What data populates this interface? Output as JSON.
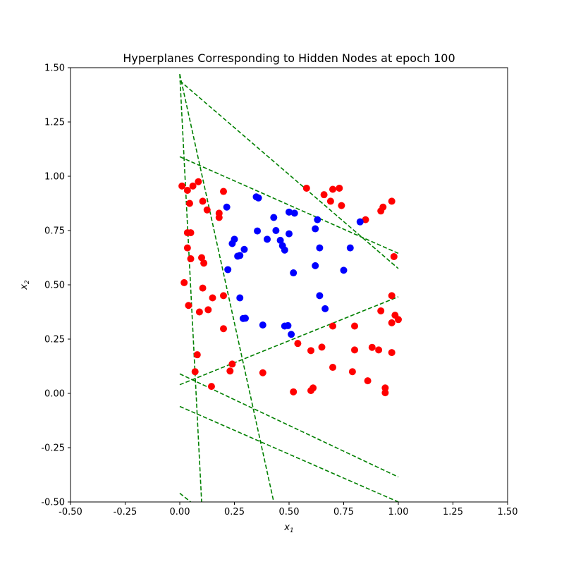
{
  "chart_data": {
    "type": "scatter",
    "title": "Hyperplanes Corresponding to Hidden Nodes at epoch 100",
    "xlabel": "x",
    "xlabel_sub": "1",
    "ylabel": "x",
    "ylabel_sub": "2",
    "xlim": [
      -0.5,
      1.5
    ],
    "ylim": [
      -0.5,
      1.5
    ],
    "xticks": [
      "-0.50",
      "-0.25",
      "0.00",
      "0.25",
      "0.50",
      "0.75",
      "1.00",
      "1.25",
      "1.50"
    ],
    "yticks": [
      "-0.50",
      "-0.25",
      "0.00",
      "0.25",
      "0.50",
      "0.75",
      "1.00",
      "1.25",
      "1.50"
    ],
    "grid": false,
    "colors": {
      "red": "#ff0000",
      "blue": "#0000ff",
      "hyperplane": "#008000"
    },
    "series": [
      {
        "color": "red",
        "points": [
          [
            0.01,
            0.955
          ],
          [
            0.035,
            0.935
          ],
          [
            0.045,
            0.875
          ],
          [
            0.06,
            0.955
          ],
          [
            0.085,
            0.975
          ],
          [
            0.105,
            0.885
          ],
          [
            0.125,
            0.845
          ],
          [
            0.2,
            0.93
          ],
          [
            0.18,
            0.83
          ],
          [
            0.18,
            0.81
          ],
          [
            0.035,
            0.74
          ],
          [
            0.05,
            0.74
          ],
          [
            0.035,
            0.67
          ],
          [
            0.05,
            0.62
          ],
          [
            0.1,
            0.625
          ],
          [
            0.11,
            0.6
          ],
          [
            0.02,
            0.51
          ],
          [
            0.105,
            0.485
          ],
          [
            0.04,
            0.405
          ],
          [
            0.09,
            0.375
          ],
          [
            0.13,
            0.385
          ],
          [
            0.15,
            0.44
          ],
          [
            0.2,
            0.45
          ],
          [
            0.2,
            0.298
          ],
          [
            0.08,
            0.178
          ],
          [
            0.07,
            0.1
          ],
          [
            0.145,
            0.032
          ],
          [
            0.24,
            0.135
          ],
          [
            0.23,
            0.103
          ],
          [
            0.38,
            0.095
          ],
          [
            0.54,
            0.23
          ],
          [
            0.52,
            0.007
          ],
          [
            0.6,
            0.013
          ],
          [
            0.61,
            0.025
          ],
          [
            0.6,
            0.197
          ],
          [
            0.65,
            0.213
          ],
          [
            0.7,
            0.12
          ],
          [
            0.7,
            0.31
          ],
          [
            0.58,
            0.945
          ],
          [
            0.66,
            0.915
          ],
          [
            0.7,
            0.94
          ],
          [
            0.73,
            0.945
          ],
          [
            0.74,
            0.865
          ],
          [
            0.69,
            0.885
          ],
          [
            0.85,
            0.8
          ],
          [
            0.92,
            0.84
          ],
          [
            0.93,
            0.858
          ],
          [
            0.97,
            0.885
          ],
          [
            0.98,
            0.63
          ],
          [
            0.79,
            0.1
          ],
          [
            0.8,
            0.2
          ],
          [
            0.8,
            0.31
          ],
          [
            0.86,
            0.058
          ],
          [
            0.88,
            0.212
          ],
          [
            0.91,
            0.2
          ],
          [
            0.92,
            0.38
          ],
          [
            0.94,
            0.003
          ],
          [
            0.94,
            0.025
          ],
          [
            0.97,
            0.188
          ],
          [
            0.97,
            0.325
          ],
          [
            0.97,
            0.45
          ],
          [
            0.985,
            0.36
          ],
          [
            1.0,
            0.34
          ]
        ]
      },
      {
        "color": "blue",
        "points": [
          [
            0.215,
            0.858
          ],
          [
            0.24,
            0.69
          ],
          [
            0.25,
            0.71
          ],
          [
            0.265,
            0.632
          ],
          [
            0.275,
            0.635
          ],
          [
            0.295,
            0.663
          ],
          [
            0.22,
            0.57
          ],
          [
            0.275,
            0.44
          ],
          [
            0.29,
            0.345
          ],
          [
            0.3,
            0.346
          ],
          [
            0.35,
            0.905
          ],
          [
            0.36,
            0.9
          ],
          [
            0.355,
            0.748
          ],
          [
            0.4,
            0.71
          ],
          [
            0.43,
            0.81
          ],
          [
            0.44,
            0.75
          ],
          [
            0.46,
            0.705
          ],
          [
            0.47,
            0.68
          ],
          [
            0.48,
            0.66
          ],
          [
            0.38,
            0.315
          ],
          [
            0.48,
            0.31
          ],
          [
            0.495,
            0.312
          ],
          [
            0.51,
            0.272
          ],
          [
            0.5,
            0.835
          ],
          [
            0.525,
            0.83
          ],
          [
            0.5,
            0.735
          ],
          [
            0.52,
            0.555
          ],
          [
            0.62,
            0.758
          ],
          [
            0.63,
            0.8
          ],
          [
            0.64,
            0.67
          ],
          [
            0.62,
            0.588
          ],
          [
            0.64,
            0.45
          ],
          [
            0.665,
            0.39
          ],
          [
            0.75,
            0.567
          ],
          [
            0.78,
            0.67
          ],
          [
            0.825,
            0.79
          ]
        ]
      }
    ],
    "hyperplanes": [
      {
        "from": [
          0.0,
          1.44
        ],
        "to": [
          1.0,
          0.575
        ]
      },
      {
        "from": [
          0.0,
          1.09
        ],
        "to": [
          1.0,
          0.645
        ]
      },
      {
        "from": [
          0.0,
          0.04
        ],
        "to": [
          1.0,
          0.445
        ]
      },
      {
        "from": [
          0.0,
          0.09
        ],
        "to": [
          1.0,
          -0.385
        ]
      },
      {
        "from": [
          0.0,
          -0.06
        ],
        "to": [
          1.0,
          -0.5
        ]
      },
      {
        "from": [
          0.0,
          1.47
        ],
        "to": [
          0.1,
          -0.5
        ]
      },
      {
        "from": [
          0.0,
          1.47
        ],
        "to": [
          0.43,
          -0.5
        ]
      },
      {
        "from": [
          0.0,
          -0.46
        ],
        "to": [
          0.05,
          -0.5
        ]
      }
    ]
  }
}
